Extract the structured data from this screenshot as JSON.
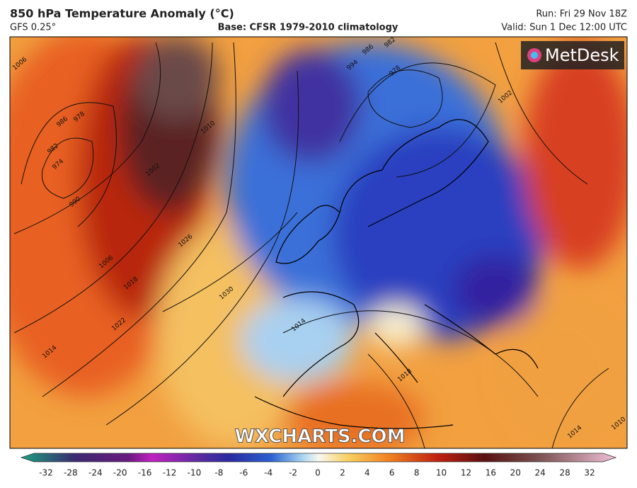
{
  "header": {
    "title": "850 hPa Temperature Anomaly (°C)",
    "model": "GFS 0.25°",
    "base": "Base: CFSR 1979-2010 climatology",
    "run": "Run: Fri 29 Nov 18Z",
    "valid": "Valid: Sun 1 Dec 12:00 UTC"
  },
  "logo": "MetDesk",
  "watermark": "WXCHARTS.COM",
  "isobar_labels": [
    "974",
    "982",
    "986",
    "978",
    "990",
    "1002",
    "1006",
    "1010",
    "1018",
    "1022",
    "1026",
    "1030",
    "1014",
    "1014",
    "1018",
    "1014",
    "1010",
    "1002",
    "982",
    "986",
    "994",
    "978",
    "1006"
  ],
  "colorbar": {
    "ticks": [
      -32,
      -28,
      -24,
      -20,
      -16,
      -12,
      -10,
      -8,
      -6,
      -4,
      -2,
      0,
      2,
      4,
      6,
      8,
      10,
      12,
      16,
      20,
      24,
      28,
      32
    ]
  }
}
